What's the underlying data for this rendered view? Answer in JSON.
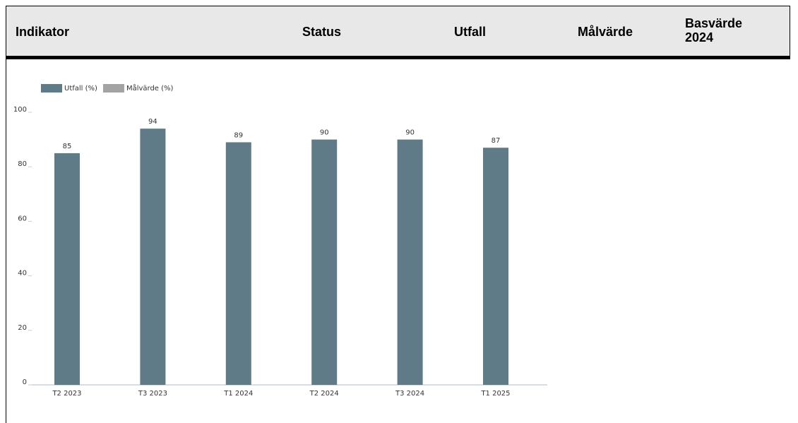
{
  "table_header": {
    "columns": [
      "Indikator",
      "Status",
      "Utfall",
      "Målvärde",
      [
        "Basvärde",
        "2024"
      ]
    ]
  },
  "chart_data": {
    "type": "bar",
    "categories": [
      "T2 2023",
      "T3 2023",
      "T1 2024",
      "T2 2024",
      "T3 2024",
      "T1 2025"
    ],
    "series": [
      {
        "name": "Utfall (%)",
        "color": "#5f7b88",
        "values": [
          85,
          94,
          89,
          90,
          90,
          87
        ]
      },
      {
        "name": "Målvärde (%)",
        "color": "#a3a3a3",
        "values": [
          null,
          null,
          null,
          null,
          null,
          null
        ]
      }
    ],
    "ylim": [
      0,
      100
    ],
    "yticks": [
      0,
      20,
      40,
      60,
      80,
      100
    ],
    "grid": false,
    "legend": "top-left"
  }
}
